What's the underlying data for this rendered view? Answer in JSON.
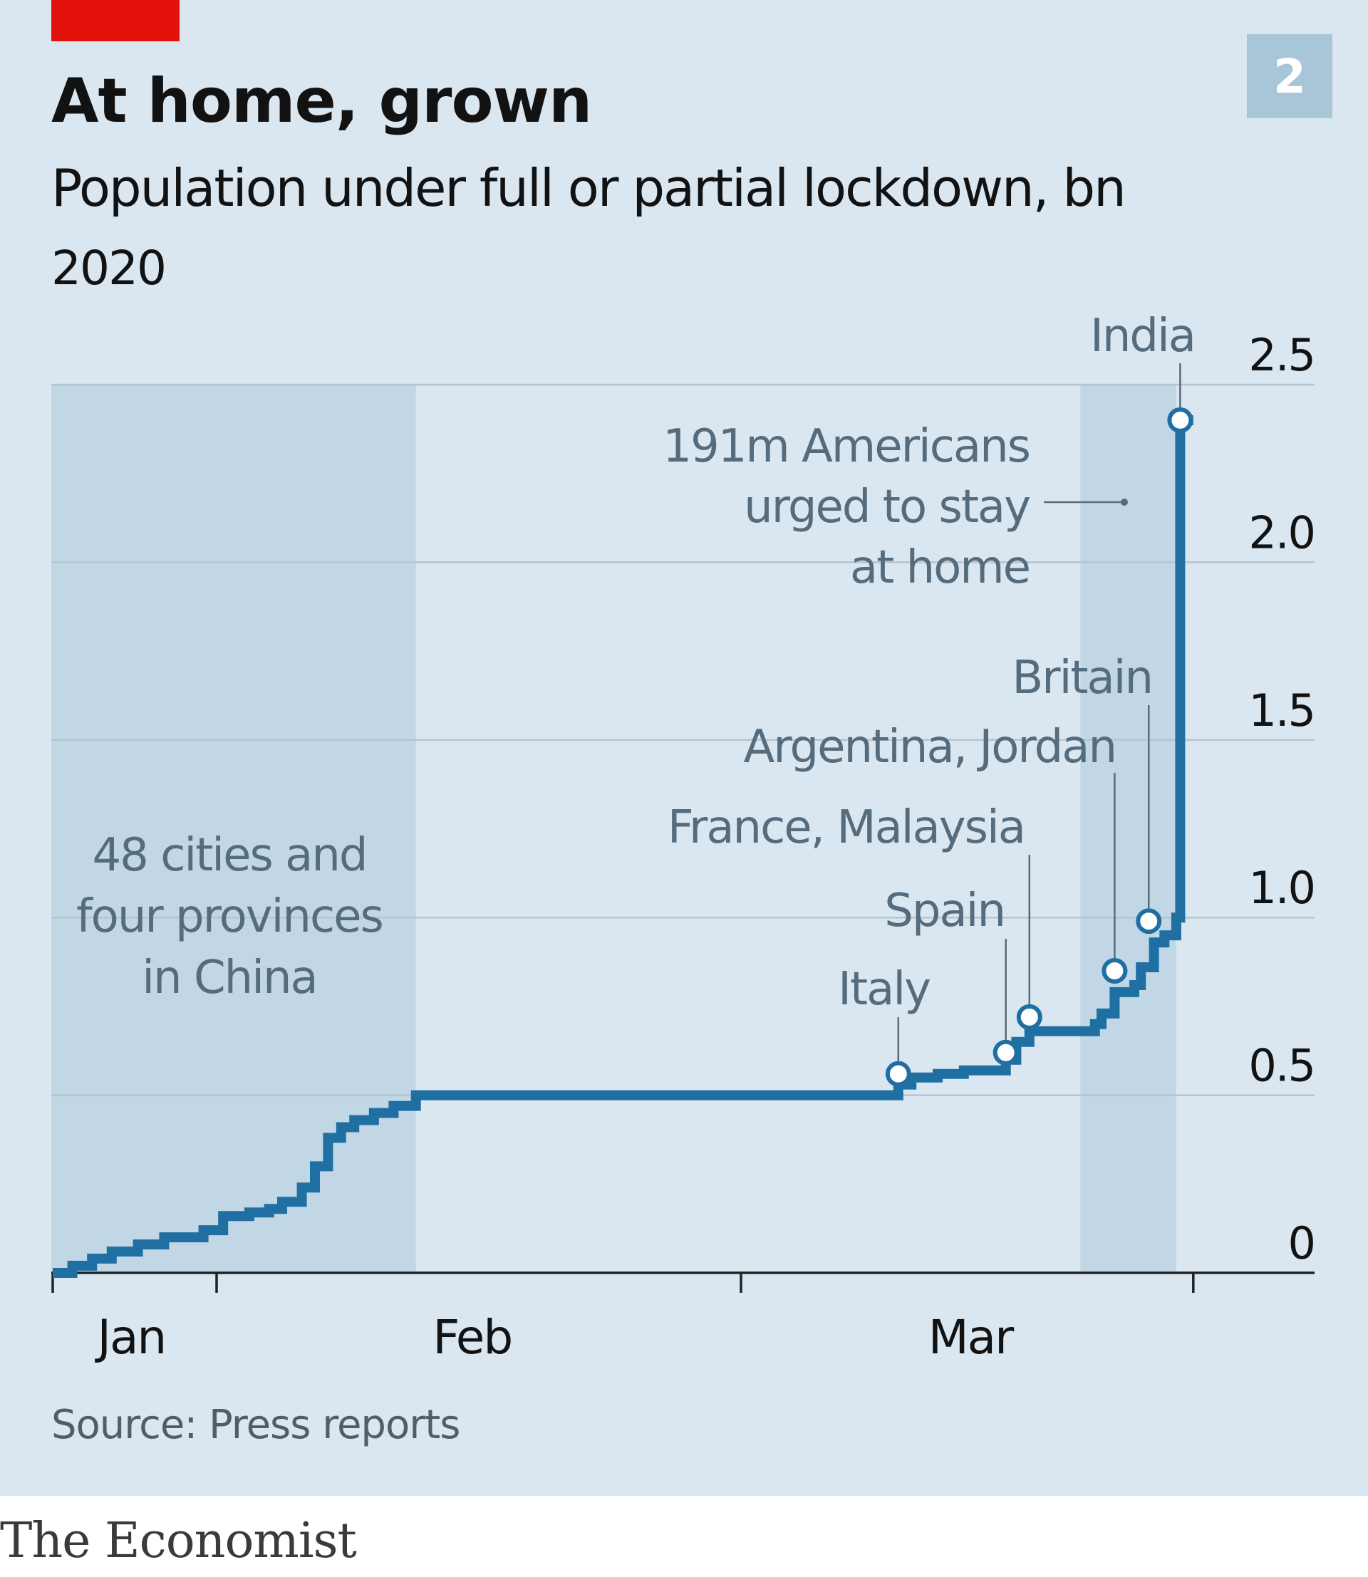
{
  "header": {
    "badge": "2",
    "title": "At home, grown",
    "subtitle": "Population under full or partial lockdown, bn",
    "year": "2020"
  },
  "footer": {
    "source": "Source: Press reports",
    "brand": "The Economist"
  },
  "colors": {
    "background": "#dbe7f0",
    "shade": "#c1d7e5",
    "line": "#1f6fa3",
    "grid": "#b5c4ce",
    "accent_red": "#e3120b",
    "annotation_text": "#556c7e"
  },
  "chart_data": {
    "type": "line",
    "title": "At home, grown",
    "subtitle": "Population under full or partial lockdown, bn",
    "xlabel": "",
    "ylabel": "",
    "x_range_days": [
      0,
      87
    ],
    "ylim": [
      0,
      2.5
    ],
    "y_ticks": [
      {
        "value": 0,
        "label": "0"
      },
      {
        "value": 0.5,
        "label": "0.5"
      },
      {
        "value": 1.0,
        "label": "1.0"
      },
      {
        "value": 1.5,
        "label": "1.5"
      },
      {
        "value": 2.0,
        "label": "2.0"
      },
      {
        "value": 2.5,
        "label": "2.5"
      }
    ],
    "x_ticks": [
      0,
      12.5,
      52.5,
      87
    ],
    "x_labels": [
      {
        "day": 6,
        "label": "Jan"
      },
      {
        "day": 32,
        "label": "Feb"
      },
      {
        "day": 70,
        "label": "Mar"
      }
    ],
    "shaded_ranges": [
      [
        0,
        27.7
      ],
      [
        78.5,
        85.7
      ]
    ],
    "series": [
      {
        "name": "Population under lockdown",
        "points": [
          [
            0,
            0
          ],
          [
            1.5,
            0.02
          ],
          [
            3,
            0.04
          ],
          [
            4.5,
            0.06
          ],
          [
            6.5,
            0.08
          ],
          [
            8.5,
            0.1
          ],
          [
            11.5,
            0.12
          ],
          [
            13,
            0.16
          ],
          [
            15,
            0.17
          ],
          [
            16.5,
            0.18
          ],
          [
            17.5,
            0.2
          ],
          [
            19,
            0.24
          ],
          [
            20,
            0.3
          ],
          [
            21,
            0.38
          ],
          [
            22,
            0.41
          ],
          [
            23,
            0.43
          ],
          [
            24.5,
            0.45
          ],
          [
            26,
            0.47
          ],
          [
            27.7,
            0.5
          ],
          [
            64.5,
            0.53
          ],
          [
            65.5,
            0.55
          ],
          [
            67.5,
            0.56
          ],
          [
            69.5,
            0.57
          ],
          [
            72.7,
            0.62
          ],
          [
            73,
            0.6
          ],
          [
            73.5,
            0.65
          ],
          [
            74.5,
            0.68
          ],
          [
            79.5,
            0.7
          ],
          [
            80,
            0.73
          ],
          [
            81,
            0.79
          ],
          [
            82.5,
            0.81
          ],
          [
            83,
            0.86
          ],
          [
            84,
            0.93
          ],
          [
            84.8,
            0.95
          ],
          [
            85.7,
            1.0
          ],
          [
            86,
            2.4
          ],
          [
            87,
            2.4
          ]
        ]
      }
    ],
    "annotations": [
      {
        "label": "48 cities and four provinces in China",
        "lines": [
          "48 cities and",
          "four provinces",
          "in China"
        ]
      },
      {
        "label": "Italy",
        "day": 64.5,
        "value": 0.56
      },
      {
        "label": "Spain",
        "day": 72.7,
        "value": 0.62
      },
      {
        "label": "France, Malaysia",
        "day": 74.5,
        "value": 0.72
      },
      {
        "label": "Argentina, Jordan",
        "day": 81,
        "value": 0.85
      },
      {
        "label": "Britain",
        "day": 83.6,
        "value": 0.99
      },
      {
        "label": "191m Americans urged to stay at home",
        "lines": [
          "191m Americans",
          "urged to stay",
          "at home"
        ]
      },
      {
        "label": "India",
        "day": 86,
        "value": 2.4
      }
    ]
  }
}
